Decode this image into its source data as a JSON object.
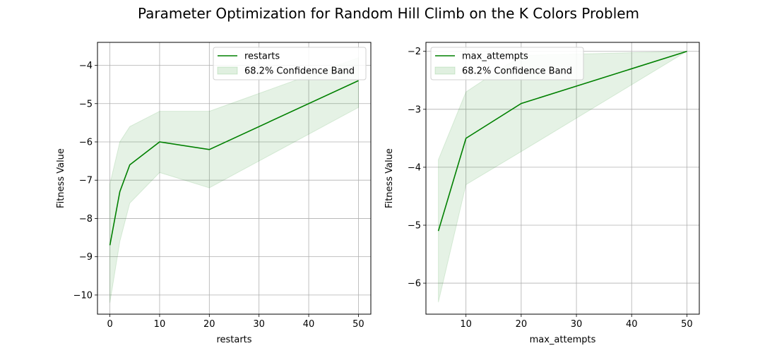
{
  "figure": {
    "title": "Parameter Optimization for Random Hill Climb on the K Colors Problem"
  },
  "chart_data": [
    {
      "type": "line",
      "title": "",
      "xlabel": "restarts",
      "ylabel": "Fitness Value",
      "xlim": [
        -2.5,
        52.5
      ],
      "ylim": [
        -10.5,
        -3.4
      ],
      "xticks": [
        0,
        10,
        20,
        30,
        40,
        50
      ],
      "yticks": [
        -10,
        -9,
        -8,
        -7,
        -6,
        -5,
        -4
      ],
      "grid": true,
      "legend_position": "top-right",
      "line_color": "#008000",
      "band_color": "#008000",
      "series": [
        {
          "name": "restarts",
          "x": [
            0,
            2,
            4,
            10,
            20,
            50
          ],
          "y": [
            -8.7,
            -7.3,
            -6.6,
            -6.0,
            -6.2,
            -4.4
          ],
          "band_label": "68.2% Confidence Band",
          "lower": [
            -10.2,
            -8.6,
            -7.6,
            -6.8,
            -7.2,
            -5.1
          ],
          "upper": [
            -7.1,
            -6.0,
            -5.6,
            -5.2,
            -5.2,
            -3.8
          ]
        }
      ]
    },
    {
      "type": "line",
      "title": "",
      "xlabel": "max_attempts",
      "ylabel": "Fitness Value",
      "xlim": [
        2.75,
        52.25
      ],
      "ylim": [
        -6.535,
        -1.845
      ],
      "xticks": [
        10,
        20,
        30,
        40,
        50
      ],
      "yticks": [
        -6,
        -5,
        -4,
        -3,
        -2
      ],
      "grid": true,
      "legend_position": "top-left",
      "line_color": "#008000",
      "band_color": "#008000",
      "series": [
        {
          "name": "max_attempts",
          "x": [
            5,
            10,
            20,
            50
          ],
          "y": [
            -5.1,
            -3.5,
            -2.9,
            -2.0
          ],
          "band_label": "68.2% Confidence Band",
          "lower": [
            -6.33,
            -4.3,
            -3.73,
            -2.0
          ],
          "upper": [
            -3.87,
            -2.7,
            -2.07,
            -2.0
          ]
        }
      ]
    }
  ]
}
